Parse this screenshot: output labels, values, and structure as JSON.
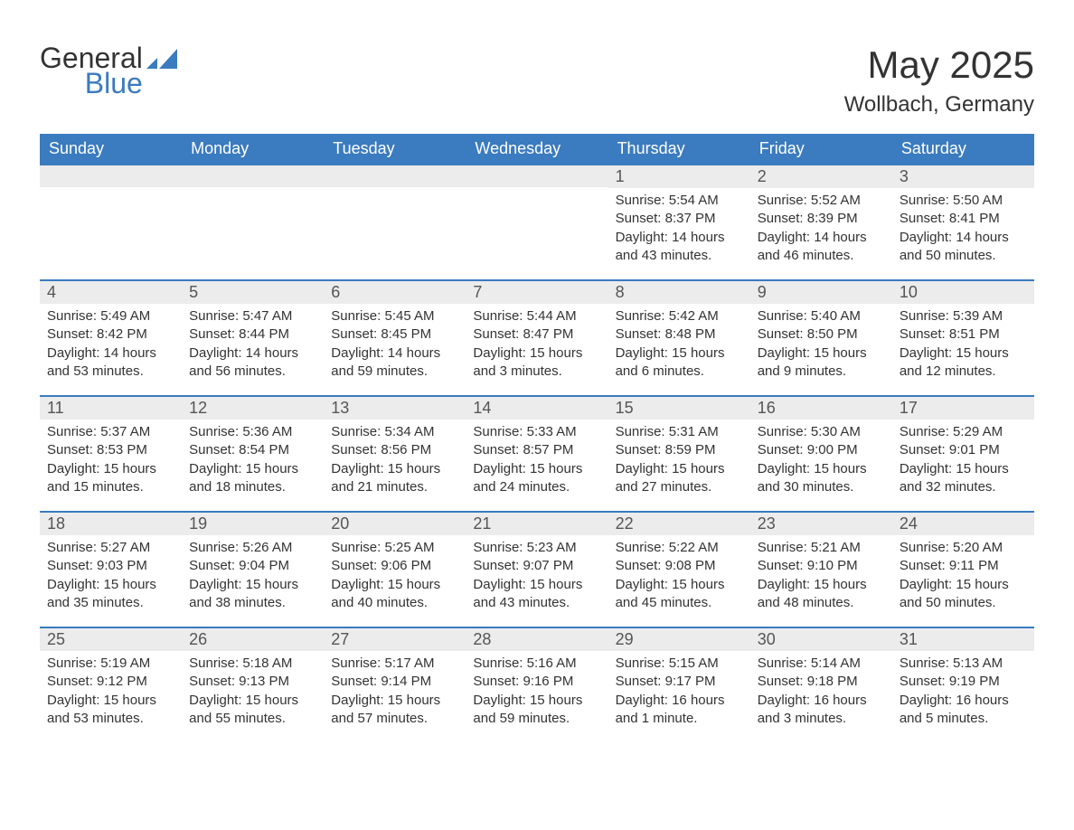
{
  "logo": {
    "general": "General",
    "blue": "Blue"
  },
  "title": "May 2025",
  "location": "Wollbach, Germany",
  "colors": {
    "header_bg": "#3b7bbf",
    "header_text": "#ffffff",
    "daynum_bg": "#ececec",
    "daynum_text": "#555555",
    "body_text": "#333333",
    "page_bg": "#ffffff",
    "rule": "#3b7bbf"
  },
  "day_headers": [
    "Sunday",
    "Monday",
    "Tuesday",
    "Wednesday",
    "Thursday",
    "Friday",
    "Saturday"
  ],
  "weeks": [
    [
      null,
      null,
      null,
      null,
      {
        "num": "1",
        "sunrise": "Sunrise: 5:54 AM",
        "sunset": "Sunset: 8:37 PM",
        "daylight": "Daylight: 14 hours and 43 minutes."
      },
      {
        "num": "2",
        "sunrise": "Sunrise: 5:52 AM",
        "sunset": "Sunset: 8:39 PM",
        "daylight": "Daylight: 14 hours and 46 minutes."
      },
      {
        "num": "3",
        "sunrise": "Sunrise: 5:50 AM",
        "sunset": "Sunset: 8:41 PM",
        "daylight": "Daylight: 14 hours and 50 minutes."
      }
    ],
    [
      {
        "num": "4",
        "sunrise": "Sunrise: 5:49 AM",
        "sunset": "Sunset: 8:42 PM",
        "daylight": "Daylight: 14 hours and 53 minutes."
      },
      {
        "num": "5",
        "sunrise": "Sunrise: 5:47 AM",
        "sunset": "Sunset: 8:44 PM",
        "daylight": "Daylight: 14 hours and 56 minutes."
      },
      {
        "num": "6",
        "sunrise": "Sunrise: 5:45 AM",
        "sunset": "Sunset: 8:45 PM",
        "daylight": "Daylight: 14 hours and 59 minutes."
      },
      {
        "num": "7",
        "sunrise": "Sunrise: 5:44 AM",
        "sunset": "Sunset: 8:47 PM",
        "daylight": "Daylight: 15 hours and 3 minutes."
      },
      {
        "num": "8",
        "sunrise": "Sunrise: 5:42 AM",
        "sunset": "Sunset: 8:48 PM",
        "daylight": "Daylight: 15 hours and 6 minutes."
      },
      {
        "num": "9",
        "sunrise": "Sunrise: 5:40 AM",
        "sunset": "Sunset: 8:50 PM",
        "daylight": "Daylight: 15 hours and 9 minutes."
      },
      {
        "num": "10",
        "sunrise": "Sunrise: 5:39 AM",
        "sunset": "Sunset: 8:51 PM",
        "daylight": "Daylight: 15 hours and 12 minutes."
      }
    ],
    [
      {
        "num": "11",
        "sunrise": "Sunrise: 5:37 AM",
        "sunset": "Sunset: 8:53 PM",
        "daylight": "Daylight: 15 hours and 15 minutes."
      },
      {
        "num": "12",
        "sunrise": "Sunrise: 5:36 AM",
        "sunset": "Sunset: 8:54 PM",
        "daylight": "Daylight: 15 hours and 18 minutes."
      },
      {
        "num": "13",
        "sunrise": "Sunrise: 5:34 AM",
        "sunset": "Sunset: 8:56 PM",
        "daylight": "Daylight: 15 hours and 21 minutes."
      },
      {
        "num": "14",
        "sunrise": "Sunrise: 5:33 AM",
        "sunset": "Sunset: 8:57 PM",
        "daylight": "Daylight: 15 hours and 24 minutes."
      },
      {
        "num": "15",
        "sunrise": "Sunrise: 5:31 AM",
        "sunset": "Sunset: 8:59 PM",
        "daylight": "Daylight: 15 hours and 27 minutes."
      },
      {
        "num": "16",
        "sunrise": "Sunrise: 5:30 AM",
        "sunset": "Sunset: 9:00 PM",
        "daylight": "Daylight: 15 hours and 30 minutes."
      },
      {
        "num": "17",
        "sunrise": "Sunrise: 5:29 AM",
        "sunset": "Sunset: 9:01 PM",
        "daylight": "Daylight: 15 hours and 32 minutes."
      }
    ],
    [
      {
        "num": "18",
        "sunrise": "Sunrise: 5:27 AM",
        "sunset": "Sunset: 9:03 PM",
        "daylight": "Daylight: 15 hours and 35 minutes."
      },
      {
        "num": "19",
        "sunrise": "Sunrise: 5:26 AM",
        "sunset": "Sunset: 9:04 PM",
        "daylight": "Daylight: 15 hours and 38 minutes."
      },
      {
        "num": "20",
        "sunrise": "Sunrise: 5:25 AM",
        "sunset": "Sunset: 9:06 PM",
        "daylight": "Daylight: 15 hours and 40 minutes."
      },
      {
        "num": "21",
        "sunrise": "Sunrise: 5:23 AM",
        "sunset": "Sunset: 9:07 PM",
        "daylight": "Daylight: 15 hours and 43 minutes."
      },
      {
        "num": "22",
        "sunrise": "Sunrise: 5:22 AM",
        "sunset": "Sunset: 9:08 PM",
        "daylight": "Daylight: 15 hours and 45 minutes."
      },
      {
        "num": "23",
        "sunrise": "Sunrise: 5:21 AM",
        "sunset": "Sunset: 9:10 PM",
        "daylight": "Daylight: 15 hours and 48 minutes."
      },
      {
        "num": "24",
        "sunrise": "Sunrise: 5:20 AM",
        "sunset": "Sunset: 9:11 PM",
        "daylight": "Daylight: 15 hours and 50 minutes."
      }
    ],
    [
      {
        "num": "25",
        "sunrise": "Sunrise: 5:19 AM",
        "sunset": "Sunset: 9:12 PM",
        "daylight": "Daylight: 15 hours and 53 minutes."
      },
      {
        "num": "26",
        "sunrise": "Sunrise: 5:18 AM",
        "sunset": "Sunset: 9:13 PM",
        "daylight": "Daylight: 15 hours and 55 minutes."
      },
      {
        "num": "27",
        "sunrise": "Sunrise: 5:17 AM",
        "sunset": "Sunset: 9:14 PM",
        "daylight": "Daylight: 15 hours and 57 minutes."
      },
      {
        "num": "28",
        "sunrise": "Sunrise: 5:16 AM",
        "sunset": "Sunset: 9:16 PM",
        "daylight": "Daylight: 15 hours and 59 minutes."
      },
      {
        "num": "29",
        "sunrise": "Sunrise: 5:15 AM",
        "sunset": "Sunset: 9:17 PM",
        "daylight": "Daylight: 16 hours and 1 minute."
      },
      {
        "num": "30",
        "sunrise": "Sunrise: 5:14 AM",
        "sunset": "Sunset: 9:18 PM",
        "daylight": "Daylight: 16 hours and 3 minutes."
      },
      {
        "num": "31",
        "sunrise": "Sunrise: 5:13 AM",
        "sunset": "Sunset: 9:19 PM",
        "daylight": "Daylight: 16 hours and 5 minutes."
      }
    ]
  ]
}
